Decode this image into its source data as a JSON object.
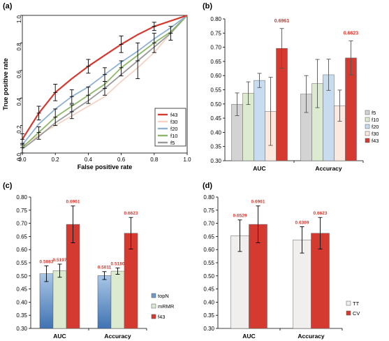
{
  "colors": {
    "f43": "#d43a2f",
    "f30": "#f3d3c4",
    "f20": "#8fb1d2",
    "f10": "#8db86a",
    "f5": "#9a9a9a",
    "bar_f5": "#d3d3d3",
    "bar_f10": "#dcebd0",
    "bar_f20": "#c8dcef",
    "bar_f30": "#fbe8df",
    "bar_f43": "#d43a2f",
    "topN": "#6d9ccc",
    "mRMR": "#dcebd0",
    "TT": "#f0efed",
    "CV": "#d43a2f",
    "value_label": "#d43a2f"
  },
  "chart_data": [
    {
      "panel": "(a)",
      "type": "line",
      "xlabel": "False positive rate",
      "ylabel": "True positive rate",
      "xlim": [
        0,
        1
      ],
      "ylim": [
        0,
        1
      ],
      "xticks": [
        "0.0",
        "0.2",
        "0.4",
        "0.6",
        "0.8",
        "1.0"
      ],
      "yticks": [
        "0.0",
        "0.2",
        "0.4",
        "0.6",
        "0.8",
        "1.0"
      ],
      "legend_position": "lower-right",
      "x": [
        0,
        0.1,
        0.2,
        0.3,
        0.4,
        0.5,
        0.6,
        0.7,
        0.8,
        0.9,
        1.0
      ],
      "series": [
        {
          "name": "f43",
          "values": [
            0.1,
            0.29,
            0.44,
            0.54,
            0.63,
            0.71,
            0.79,
            0.86,
            0.92,
            0.96,
            1.0
          ]
        },
        {
          "name": "f30",
          "values": [
            0.05,
            0.13,
            0.2,
            0.27,
            0.34,
            0.41,
            0.52,
            0.62,
            0.73,
            0.87,
            1.0
          ]
        },
        {
          "name": "f20",
          "values": [
            0.06,
            0.21,
            0.32,
            0.41,
            0.48,
            0.57,
            0.66,
            0.74,
            0.83,
            0.91,
            1.0
          ]
        },
        {
          "name": "f10",
          "values": [
            0.04,
            0.15,
            0.26,
            0.34,
            0.42,
            0.5,
            0.62,
            0.71,
            0.8,
            0.88,
            1.0
          ]
        },
        {
          "name": "f5",
          "values": [
            0.03,
            0.12,
            0.22,
            0.3,
            0.38,
            0.47,
            0.57,
            0.67,
            0.77,
            0.87,
            1.0
          ]
        }
      ],
      "error_bars": [
        {
          "x": 0.0,
          "y": 0.1,
          "lo": 0.06,
          "hi": 0.14
        },
        {
          "x": 0.0,
          "y": 0.04,
          "lo": 0.0,
          "hi": 0.07
        },
        {
          "x": 0.1,
          "y": 0.29,
          "lo": 0.24,
          "hi": 0.34
        },
        {
          "x": 0.1,
          "y": 0.15,
          "lo": 0.1,
          "hi": 0.19
        },
        {
          "x": 0.2,
          "y": 0.44,
          "lo": 0.38,
          "hi": 0.5
        },
        {
          "x": 0.2,
          "y": 0.26,
          "lo": 0.2,
          "hi": 0.32
        },
        {
          "x": 0.3,
          "y": 0.41,
          "lo": 0.36,
          "hi": 0.46
        },
        {
          "x": 0.3,
          "y": 0.3,
          "lo": 0.25,
          "hi": 0.35
        },
        {
          "x": 0.4,
          "y": 0.63,
          "lo": 0.58,
          "hi": 0.68
        },
        {
          "x": 0.4,
          "y": 0.42,
          "lo": 0.36,
          "hi": 0.48
        },
        {
          "x": 0.5,
          "y": 0.57,
          "lo": 0.52,
          "hi": 0.62
        },
        {
          "x": 0.5,
          "y": 0.47,
          "lo": 0.42,
          "hi": 0.52
        },
        {
          "x": 0.6,
          "y": 0.79,
          "lo": 0.73,
          "hi": 0.85
        },
        {
          "x": 0.6,
          "y": 0.62,
          "lo": 0.56,
          "hi": 0.67
        },
        {
          "x": 0.7,
          "y": 0.67,
          "lo": 0.54,
          "hi": 0.8
        },
        {
          "x": 0.8,
          "y": 0.92,
          "lo": 0.89,
          "hi": 0.95
        },
        {
          "x": 0.8,
          "y": 0.8,
          "lo": 0.73,
          "hi": 0.87
        },
        {
          "x": 0.9,
          "y": 0.87,
          "lo": 0.82,
          "hi": 0.92
        }
      ]
    },
    {
      "panel": "(b)",
      "type": "bar",
      "categories": [
        "AUC",
        "Accuracy"
      ],
      "ylim": [
        0.3,
        0.8
      ],
      "yticks": [
        "0.30",
        "0.35",
        "0.40",
        "0.45",
        "0.50",
        "0.55",
        "0.60",
        "0.65",
        "0.70",
        "0.75",
        "0.80"
      ],
      "legend_position": "right",
      "series": [
        {
          "name": "f5",
          "values": [
            0.499,
            0.535
          ],
          "err": [
            0.04,
            0.065
          ]
        },
        {
          "name": "f10",
          "values": [
            0.538,
            0.572
          ],
          "err": [
            0.04,
            0.085
          ]
        },
        {
          "name": "f20",
          "values": [
            0.583,
            0.603
          ],
          "err": [
            0.025,
            0.055
          ]
        },
        {
          "name": "f30",
          "values": [
            0.474,
            0.494
          ],
          "err": [
            0.12,
            0.055
          ]
        },
        {
          "name": "f43",
          "values": [
            0.6961,
            0.6623
          ],
          "err": [
            0.07,
            0.06
          ]
        }
      ],
      "value_labels": [
        "0.6961",
        "0.6623"
      ]
    },
    {
      "panel": "(c)",
      "type": "bar",
      "categories": [
        "AUC",
        "Accuracy"
      ],
      "ylim": [
        0.3,
        0.8
      ],
      "yticks": [
        "0.30",
        "0.35",
        "0.40",
        "0.45",
        "0.50",
        "0.55",
        "0.60",
        "0.65",
        "0.70",
        "0.75",
        "0.80"
      ],
      "legend_position": "right",
      "series": [
        {
          "name": "topN",
          "values": [
            0.5083,
            0.5011
          ],
          "err": [
            0.03,
            0.015
          ],
          "labels": [
            "0.5083",
            "0.5011"
          ]
        },
        {
          "name": "mRMR",
          "values": [
            0.5197,
            0.518
          ],
          "err": [
            0.025,
            0.012
          ],
          "labels": [
            "0.5197",
            "0.5180"
          ]
        },
        {
          "name": "f43",
          "values": [
            0.6961,
            0.6623
          ],
          "err": [
            0.07,
            0.06
          ],
          "labels": [
            "0.6961",
            "0.6623"
          ]
        }
      ]
    },
    {
      "panel": "(d)",
      "type": "bar",
      "categories": [
        "AUC",
        "Accuracy"
      ],
      "ylim": [
        0.3,
        0.8
      ],
      "yticks": [
        "0.30",
        "0.35",
        "0.40",
        "0.45",
        "0.50",
        "0.55",
        "0.60",
        "0.65",
        "0.70",
        "0.75",
        "0.80"
      ],
      "legend_position": "right",
      "series": [
        {
          "name": "TT",
          "values": [
            0.6529,
            0.6369
          ],
          "err": [
            0.06,
            0.05
          ],
          "labels": [
            "0.6529",
            "0.6369"
          ]
        },
        {
          "name": "CV",
          "values": [
            0.6961,
            0.6623
          ],
          "err": [
            0.07,
            0.06
          ],
          "labels": [
            "0.6961",
            "0.6623"
          ]
        }
      ]
    }
  ]
}
